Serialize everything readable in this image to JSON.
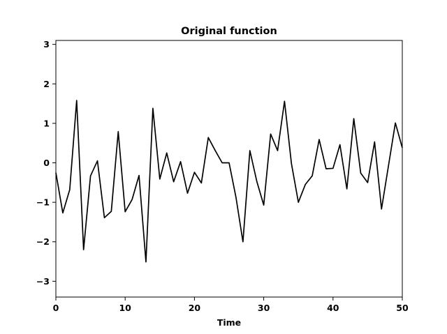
{
  "chart_data": {
    "type": "line",
    "title": "Original function",
    "xlabel": "Time",
    "ylabel": "",
    "xlim": [
      0,
      50
    ],
    "ylim": [
      -3.4,
      3.1
    ],
    "xticks": [
      0,
      10,
      20,
      30,
      40,
      50
    ],
    "yticks": [
      -3,
      -2,
      -1,
      0,
      1,
      2,
      3
    ],
    "grid": false,
    "series": [
      {
        "color": "#000000",
        "x": [
          0,
          1,
          2,
          3,
          4,
          5,
          6,
          7,
          8,
          9,
          10,
          11,
          12,
          13,
          14,
          15,
          16,
          17,
          18,
          19,
          20,
          21,
          22,
          23,
          24,
          25,
          26,
          27,
          28,
          29,
          30,
          31,
          32,
          33,
          34,
          35,
          36,
          37,
          38,
          39,
          40,
          41,
          42,
          43,
          44,
          45,
          46,
          47,
          48,
          49,
          50
        ],
        "y": [
          -0.25,
          -1.27,
          -0.68,
          1.58,
          -2.2,
          -0.33,
          0.05,
          -1.39,
          -1.23,
          0.79,
          -1.24,
          -0.93,
          -0.32,
          -2.51,
          1.38,
          -0.41,
          0.25,
          -0.48,
          0.03,
          -0.77,
          -0.24,
          -0.51,
          0.64,
          0.31,
          0.0,
          0.0,
          -0.88,
          -2.0,
          0.31,
          -0.47,
          -1.07,
          0.73,
          0.31,
          1.56,
          -0.02,
          -1.0,
          -0.55,
          -0.33,
          0.59,
          -0.15,
          -0.14,
          0.46,
          -0.66,
          1.12,
          -0.26,
          -0.5,
          0.53,
          -1.17,
          -0.08,
          1.01,
          0.38
        ]
      }
    ]
  }
}
